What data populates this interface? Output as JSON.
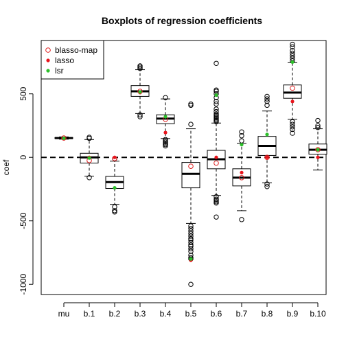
{
  "chart_data": {
    "type": "boxplot",
    "title": "Boxplots of regression coefficients",
    "xlabel": "",
    "ylabel": "coef",
    "ylim": [
      -1080,
      920
    ],
    "yticks": [
      500,
      0,
      -500,
      -1000
    ],
    "reference_line": 0,
    "categories": [
      "mu",
      "b.1",
      "b.2",
      "b.3",
      "b.4",
      "b.5",
      "b.6",
      "b.7",
      "b.8",
      "b.9",
      "b.10"
    ],
    "boxes": [
      {
        "category": "mu",
        "whisker_low": 143,
        "q1": 148,
        "median": 152,
        "q3": 156,
        "whisker_high": 161,
        "outliers": []
      },
      {
        "category": "b.1",
        "whisker_low": -148,
        "q1": -45,
        "median": 0,
        "q3": 32,
        "whisker_high": 140,
        "outliers": [
          -160,
          150,
          158
        ]
      },
      {
        "category": "b.2",
        "whisker_low": -370,
        "q1": -245,
        "median": -195,
        "q3": -150,
        "whisker_high": -30,
        "outliers": [
          -390,
          -420,
          -430,
          -10
        ]
      },
      {
        "category": "b.3",
        "whisker_low": 345,
        "q1": 480,
        "median": 520,
        "q3": 565,
        "whisker_high": 690,
        "outliers": [
          320,
          335,
          700,
          710,
          720
        ]
      },
      {
        "category": "b.4",
        "whisker_low": 148,
        "q1": 265,
        "median": 305,
        "q3": 335,
        "whisker_high": 460,
        "outliers": [
          90,
          100,
          110,
          120,
          130,
          140,
          470
        ]
      },
      {
        "category": "b.5",
        "whisker_low": -520,
        "q1": -240,
        "median": -130,
        "q3": -40,
        "whisker_high": 225,
        "outliers": [
          -540,
          -560,
          -580,
          -600,
          -620,
          -640,
          -650,
          -670,
          -690,
          -700,
          -720,
          -740,
          -770,
          -790,
          -800,
          -1000,
          260,
          410,
          420
        ]
      },
      {
        "category": "b.6",
        "whisker_low": -300,
        "q1": -90,
        "median": -15,
        "q3": 55,
        "whisker_high": 270,
        "outliers": [
          -310,
          -330,
          -340,
          -350,
          -360,
          -470,
          280,
          290,
          300,
          310,
          320,
          330,
          340,
          360,
          380,
          420,
          440,
          470,
          500,
          520,
          530,
          740
        ]
      },
      {
        "category": "b.7",
        "whisker_low": -420,
        "q1": -225,
        "median": -160,
        "q3": -90,
        "whisker_high": 110,
        "outliers": [
          -490,
          130,
          170,
          200
        ]
      },
      {
        "category": "b.8",
        "whisker_low": -200,
        "q1": 15,
        "median": 90,
        "q3": 165,
        "whisker_high": 365,
        "outliers": [
          -210,
          -230,
          410,
          440,
          460,
          480
        ]
      },
      {
        "category": "b.9",
        "whisker_low": 300,
        "q1": 465,
        "median": 510,
        "q3": 570,
        "whisker_high": 745,
        "outliers": [
          190,
          220,
          240,
          260,
          280,
          760,
          780,
          800,
          820,
          840,
          870,
          890
        ]
      },
      {
        "category": "b.10",
        "whisker_low": -100,
        "q1": 25,
        "median": 60,
        "q3": 105,
        "whisker_high": 225,
        "outliers": [
          235,
          250,
          290
        ]
      }
    ],
    "series": [
      {
        "name": "blasso-map",
        "marker": "open-circle",
        "color": "#DF1F1F",
        "values": [
          152,
          -25,
          -10,
          520,
          300,
          -70,
          -45,
          -160,
          0,
          545,
          60
        ]
      },
      {
        "name": "lasso",
        "marker": "filled-circle",
        "color": "#E8141C",
        "values": [
          150,
          0,
          0,
          510,
          195,
          -810,
          0,
          -120,
          0,
          440,
          0
        ]
      },
      {
        "name": "lsr",
        "marker": "filled-circle",
        "color": "#2DBF2B",
        "values": [
          150,
          -5,
          -240,
          515,
          320,
          -800,
          490,
          100,
          180,
          750,
          60
        ]
      }
    ],
    "legend_position": "top-left"
  }
}
